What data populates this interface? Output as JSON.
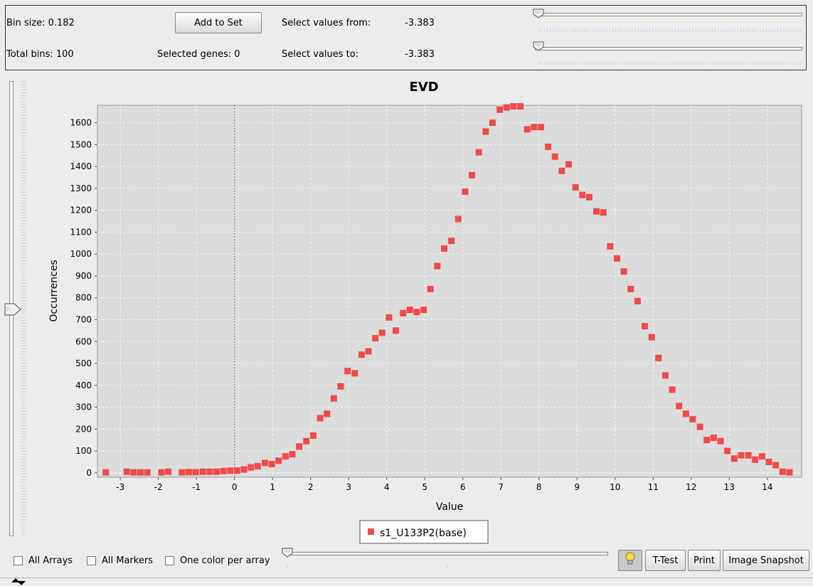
{
  "top": {
    "bin_size": "Bin size:  0.182",
    "total_bins": "Total bins: 100",
    "add_to_set": "Add to Set",
    "selected_genes": "Selected genes: 0",
    "select_from_label": "Select values from:",
    "select_from_value": "-3.383",
    "select_to_label": "Select values to:",
    "select_to_value": "-3.383"
  },
  "bottom": {
    "all_arrays": "All Arrays",
    "all_markers": "All Markers",
    "one_color": "One color per array",
    "ttest": "T-Test",
    "print": "Print",
    "snapshot": "Image Snapshot"
  },
  "icons": [
    "slider-thumb-icon",
    "lightbulb-icon",
    "arrows-icon"
  ],
  "colors": {
    "series": "#f24a4a",
    "plot_bg": "#dcdcdc",
    "marker_line": "#6b6bd6"
  },
  "chart_data": {
    "type": "scatter",
    "title": "EVD",
    "xlabel": "Value",
    "ylabel": "Occurrences",
    "xlim": [
      -3.6,
      14.9
    ],
    "ylim": [
      -20,
      1680
    ],
    "xticks": [
      -3,
      -2,
      -1,
      0,
      1,
      2,
      3,
      4,
      5,
      6,
      7,
      8,
      9,
      10,
      11,
      12,
      13,
      14
    ],
    "yticks": [
      0,
      100,
      200,
      300,
      400,
      500,
      600,
      700,
      800,
      900,
      1000,
      1100,
      1200,
      1300,
      1400,
      1500,
      1600
    ],
    "grid": true,
    "legend_position": "bottom-center",
    "vertical_marker_x": 0,
    "series": [
      {
        "name": "s1_U133P2(base)",
        "x": [
          -3.38,
          -2.83,
          -2.65,
          -2.47,
          -2.29,
          -1.92,
          -1.74,
          -1.38,
          -1.2,
          -1.02,
          -0.83,
          -0.65,
          -0.47,
          -0.29,
          -0.11,
          0.07,
          0.25,
          0.43,
          0.61,
          0.8,
          0.98,
          1.16,
          1.34,
          1.52,
          1.7,
          1.89,
          2.07,
          2.25,
          2.43,
          2.61,
          2.79,
          2.97,
          3.16,
          3.34,
          3.52,
          3.7,
          3.88,
          4.06,
          4.24,
          4.43,
          4.61,
          4.79,
          4.97,
          5.15,
          5.33,
          5.51,
          5.7,
          5.88,
          6.06,
          6.24,
          6.42,
          6.6,
          6.78,
          6.97,
          7.15,
          7.33,
          7.51,
          7.69,
          7.87,
          8.05,
          8.24,
          8.42,
          8.6,
          8.78,
          8.96,
          9.14,
          9.32,
          9.51,
          9.69,
          9.87,
          10.05,
          10.23,
          10.41,
          10.59,
          10.78,
          10.96,
          11.14,
          11.32,
          11.5,
          11.68,
          11.86,
          12.04,
          12.23,
          12.41,
          12.59,
          12.77,
          12.95,
          13.13,
          13.31,
          13.5,
          13.68,
          13.86,
          14.04,
          14.22,
          14.4,
          14.58
        ],
        "y": [
          2,
          5,
          2,
          2,
          2,
          2,
          5,
          2,
          3,
          3,
          5,
          5,
          5,
          8,
          10,
          10,
          15,
          25,
          30,
          45,
          40,
          55,
          75,
          85,
          120,
          145,
          170,
          250,
          270,
          340,
          395,
          465,
          455,
          540,
          555,
          615,
          640,
          710,
          650,
          730,
          745,
          735,
          745,
          840,
          945,
          1025,
          1060,
          1160,
          1285,
          1360,
          1465,
          1560,
          1600,
          1660,
          1670,
          1675,
          1675,
          1570,
          1580,
          1580,
          1490,
          1445,
          1380,
          1410,
          1305,
          1270,
          1260,
          1195,
          1190,
          1035,
          980,
          920,
          840,
          785,
          670,
          620,
          525,
          445,
          380,
          305,
          270,
          245,
          210,
          150,
          160,
          145,
          100,
          65,
          80,
          80,
          60,
          75,
          50,
          35,
          5,
          2
        ]
      }
    ]
  }
}
